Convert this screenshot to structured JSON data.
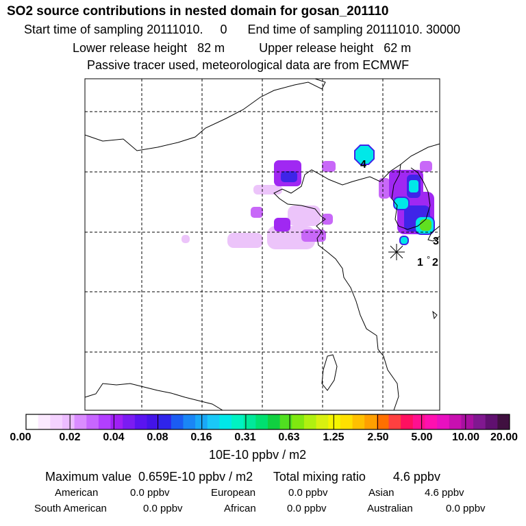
{
  "header": {
    "title": "SO2 source contributions in nested domain for gosan_201110",
    "time_line": "Start time of sampling 20111010.     0      End time of sampling 20111010. 30000",
    "height_line": "Lower release height   82 m          Upper release height   62 m",
    "passive_line": "Passive tracer used, meteorological data are from ECMWF"
  },
  "map": {
    "receptor_labels": [
      "4",
      "3",
      "1",
      "2"
    ],
    "degree_glyph": "°"
  },
  "colorbar": {
    "colors": [
      "#ffffff",
      "#fbe9ff",
      "#f4d2ff",
      "#ecbcff",
      "#da8cff",
      "#c766ff",
      "#b23fff",
      "#a020f5",
      "#7b1cf2",
      "#5a14f0",
      "#4314e8",
      "#2f24ea",
      "#1b5cf2",
      "#1a86f5",
      "#1aa8f7",
      "#1ac8f8",
      "#00e8e8",
      "#00f2c2",
      "#00e89a",
      "#00e070",
      "#10d040",
      "#50e020",
      "#80e810",
      "#b0f010",
      "#d8f010",
      "#f4f400",
      "#ffe000",
      "#ffc000",
      "#ffa000",
      "#ff7000",
      "#ff4040",
      "#ff1060",
      "#ff1090",
      "#ff10b0",
      "#e810c0",
      "#c810b0",
      "#a810a0",
      "#801890",
      "#601070",
      "#401040"
    ],
    "tick_labels": [
      "0.00",
      "0.02",
      "0.04",
      "0.08",
      "0.16",
      "0.31",
      "0.63",
      "1.25",
      "2.50",
      "5.00",
      "10.00",
      "20.00"
    ],
    "unit": "10E-10 ppbv / m2"
  },
  "summary": {
    "line": "Maximum value  0.659E-10 ppbv / m2      Total mixing ratio        4.6 ppbv",
    "regions": [
      {
        "name": "American",
        "value": "0.0 ppbv"
      },
      {
        "name": "European",
        "value": "0.0 ppbv"
      },
      {
        "name": "Asian",
        "value": "4.6 ppbv"
      },
      {
        "name": "South American",
        "value": "0.0 ppbv"
      },
      {
        "name": "African",
        "value": "0.0 ppbv"
      },
      {
        "name": "Australian",
        "value": "0.0 ppbv"
      }
    ]
  },
  "colors": {
    "light_violet": "#e8b8f8",
    "violet": "#b040f0",
    "purple": "#a020f0",
    "blue": "#3f24e8",
    "cyan": "#00e8e8",
    "green": "#60e020",
    "grid": "#000000"
  }
}
